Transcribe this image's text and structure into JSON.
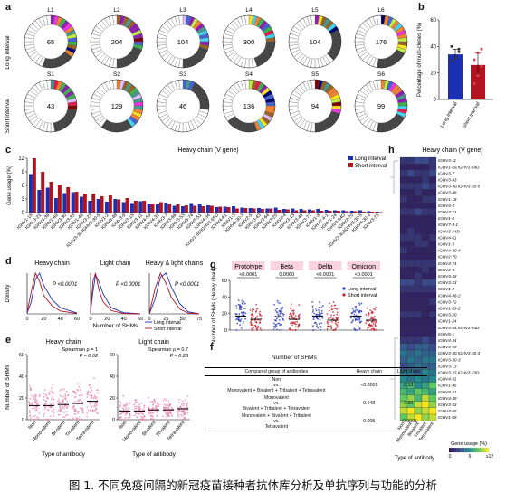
{
  "panel_labels": {
    "a": "a",
    "b": "b",
    "c": "c",
    "d": "d",
    "e": "e",
    "f": "f",
    "g": "g",
    "h": "h"
  },
  "caption": "图 1. 不同免疫间隔的新冠疫苗接种者抗体库分析及单抗序列与功能的分析",
  "colors": {
    "long": "#1b2fb3",
    "short": "#b3121f",
    "pink": "#e87aa8",
    "blue_pt": "#2a3bc5",
    "red_pt": "#c8202b",
    "grid_bg": "#fbd3df"
  },
  "chart_data": [
    {
      "panel": "a",
      "type": "pie",
      "row_labels": [
        "Long interval",
        "Short interval"
      ],
      "donuts": [
        {
          "name": "L1",
          "count": "65",
          "colored_share": 0.35
        },
        {
          "name": "L2",
          "count": "204",
          "colored_share": 0.3
        },
        {
          "name": "L3",
          "count": "104",
          "colored_share": 0.3
        },
        {
          "name": "L4",
          "count": "300",
          "colored_share": 0.25
        },
        {
          "name": "L5",
          "count": "104",
          "colored_share": 0.18
        },
        {
          "name": "L6",
          "count": "176",
          "colored_share": 0.32
        },
        {
          "name": "S1",
          "count": "43",
          "colored_share": 0.28
        },
        {
          "name": "S2",
          "count": "129",
          "colored_share": 0.4
        },
        {
          "name": "S3",
          "count": "46",
          "colored_share": 0.08
        },
        {
          "name": "S4",
          "count": "136",
          "colored_share": 0.45
        },
        {
          "name": "S5",
          "count": "94",
          "colored_share": 0.3
        },
        {
          "name": "S6",
          "count": "99",
          "colored_share": 0.32
        }
      ]
    },
    {
      "panel": "b",
      "type": "bar",
      "ylabel": "Percentage of multi-clones (%)",
      "categories": [
        "Long interval",
        "Short interval"
      ],
      "values": [
        34,
        26
      ],
      "errors": [
        4,
        9
      ],
      "points": [
        [
          29,
          31,
          36,
          40,
          32,
          38
        ],
        [
          12,
          18,
          25,
          30,
          35,
          38
        ]
      ],
      "ylim": [
        0,
        60
      ],
      "yticks": [
        "0",
        "20",
        "40",
        "60"
      ]
    },
    {
      "panel": "c",
      "type": "bar",
      "title": "Heavy chain (V gene)",
      "ylabel": "Gene usage (%)",
      "ylim": [
        0,
        12
      ],
      "yticks": [
        "0",
        "3",
        "6",
        "9",
        "12"
      ],
      "legend": [
        "Long interval",
        "Short interval"
      ],
      "categories": [
        "IGHV1-18",
        "IGHV3-21",
        "IGHV4-39",
        "IGHV1-69",
        "IGHV3-30",
        "IGHV3-33",
        "IGHV1-46",
        "IGHV3-23",
        "IGHV3-30/IGHV3-30-5",
        "IGHV1-2",
        "IGHV3-48",
        "IGHV3-9",
        "IGHV3-15",
        "IGHV3-11",
        "IGHV4-59",
        "IGHV4-31",
        "IGHV3-7",
        "IGHV3-66",
        "IGHV3-53",
        "IGHV3-74",
        "IGHV5-51",
        "IGHV4-34",
        "IGHV1-69/IGHV1-69D",
        "IGHV4-61",
        "IGHV1-3",
        "IGHV3-30-3",
        "IGHV2-5",
        "IGHV3-43",
        "IGHV3-64",
        "IGHV3-20",
        "IGHV4-4",
        "IGHV3-13",
        "IGHV3-49",
        "IGHV3-72",
        "IGHV1-8",
        "IGHV7-4-1",
        "IGHV1-24",
        "IGHV3-64D",
        "IGHV2-70",
        "IGHV3-30/IGHV3-30-5",
        "IGHV4-30-4",
        "IGHV3-73"
      ],
      "series": [
        {
          "name": "Long interval",
          "values": [
            8.5,
            5.0,
            5.5,
            3.2,
            4.3,
            4.5,
            3.5,
            2.6,
            3.0,
            2.4,
            3.0,
            2.3,
            2.1,
            2.5,
            2.0,
            1.8,
            2.2,
            1.5,
            1.4,
            2.1,
            1.9,
            1.6,
            1.2,
            1.3,
            1.4,
            1.1,
            1.0,
            1.0,
            0.9,
            1.1,
            0.8,
            0.9,
            0.8,
            0.7,
            0.8,
            0.6,
            0.5,
            0.5,
            0.4,
            0.5,
            0.3,
            0.2
          ]
        },
        {
          "name": "Short interval",
          "values": [
            12.0,
            9.0,
            6.8,
            6.2,
            5.6,
            4.6,
            4.2,
            4.2,
            3.6,
            3.8,
            2.9,
            3.2,
            2.6,
            2.6,
            2.0,
            2.3,
            1.8,
            1.8,
            1.6,
            1.5,
            1.4,
            1.5,
            1.3,
            1.2,
            0.9,
            1.0,
            0.9,
            0.8,
            0.9,
            0.6,
            0.7,
            0.5,
            0.5,
            0.5,
            0.4,
            0.4,
            0.4,
            0.3,
            0.3,
            0.2,
            0.2,
            0.1
          ]
        }
      ]
    },
    {
      "panel": "d",
      "type": "line",
      "xlabel": "Number of SHMs",
      "ylabel": "Density",
      "xticks": [
        "0",
        "20",
        "40",
        "60"
      ],
      "legend": [
        "Long interval",
        "Short interval"
      ],
      "subplots": [
        {
          "title": "Heavy chain",
          "p": "P <0.0001",
          "long": [
            [
              0,
              0.02
            ],
            [
              5,
              0.3
            ],
            [
              10,
              0.85
            ],
            [
              15,
              1.0
            ],
            [
              20,
              0.7
            ],
            [
              30,
              0.35
            ],
            [
              40,
              0.15
            ],
            [
              60,
              0.02
            ]
          ],
          "short": [
            [
              0,
              0.05
            ],
            [
              5,
              0.55
            ],
            [
              10,
              1.0
            ],
            [
              15,
              0.8
            ],
            [
              20,
              0.45
            ],
            [
              30,
              0.2
            ],
            [
              40,
              0.07
            ],
            [
              60,
              0.01
            ]
          ]
        },
        {
          "title": "Light chain",
          "p": "P <0.0001",
          "long": [
            [
              0,
              0.05
            ],
            [
              3,
              0.55
            ],
            [
              6,
              0.95
            ],
            [
              10,
              0.8
            ],
            [
              15,
              0.5
            ],
            [
              25,
              0.15
            ],
            [
              40,
              0.03
            ],
            [
              60,
              0.0
            ]
          ],
          "short": [
            [
              0,
              0.08
            ],
            [
              3,
              0.8
            ],
            [
              6,
              1.0
            ],
            [
              10,
              0.6
            ],
            [
              15,
              0.3
            ],
            [
              25,
              0.08
            ],
            [
              40,
              0.01
            ],
            [
              60,
              0.0
            ]
          ]
        },
        {
          "title": "Heavy & light chains",
          "p": "P <0.0001",
          "long": [
            [
              0,
              0.0
            ],
            [
              10,
              0.35
            ],
            [
              20,
              0.9
            ],
            [
              30,
              1.0
            ],
            [
              40,
              0.65
            ],
            [
              55,
              0.25
            ],
            [
              70,
              0.05
            ],
            [
              90,
              0.0
            ]
          ],
          "short": [
            [
              0,
              0.02
            ],
            [
              10,
              0.6
            ],
            [
              20,
              1.0
            ],
            [
              30,
              0.75
            ],
            [
              40,
              0.4
            ],
            [
              55,
              0.12
            ],
            [
              70,
              0.02
            ],
            [
              90,
              0.0
            ]
          ]
        }
      ]
    },
    {
      "panel": "e",
      "type": "scatter",
      "ylabel": "Number of SHMs",
      "xlabel": "Type of antibody",
      "ylim": [
        0,
        60
      ],
      "yticks": [
        "0",
        "20",
        "40",
        "60"
      ],
      "categories": [
        "Non",
        "Monovalent",
        "Bivalent",
        "Trivalent",
        "Tetravalent"
      ],
      "subplots": [
        {
          "title": "Heavy chain",
          "stat": "Spearman ρ = 1",
          "p": "P = 0.02",
          "medians": [
            13,
            13,
            14,
            15,
            17
          ]
        },
        {
          "title": "Light chain",
          "stat": "Spearman ρ = 0.7",
          "p": "P = 0.23",
          "medians": [
            8,
            8,
            9,
            9,
            10
          ]
        }
      ]
    },
    {
      "panel": "g",
      "type": "scatter",
      "ylabel": "Number of SHMs (Heavy chain)",
      "ylim": [
        0,
        60
      ],
      "yticks": [
        "0",
        "20",
        "40",
        "60"
      ],
      "legend": [
        "Long interval",
        "Short interval"
      ],
      "groups": [
        {
          "name": "Prototype",
          "p": "<0.0001",
          "long_median": 17,
          "short_median": 13
        },
        {
          "name": "Beta",
          "p": "0.0060",
          "long_median": 16,
          "short_median": 13
        },
        {
          "name": "Delta",
          "p": "<0.0001",
          "long_median": 17,
          "short_median": 12
        },
        {
          "name": "Omicron",
          "p": "<0.0001",
          "long_median": 17,
          "short_median": 12
        }
      ]
    },
    {
      "panel": "f",
      "type": "table",
      "title": "Number of SHMs",
      "columns": [
        "Compared group of antibodies",
        "Heavy chain",
        "Light chain"
      ],
      "rows": [
        {
          "group": [
            "Non",
            "vs.",
            "Monovalent + Bivalent + Tribalent + Tetravalent"
          ],
          "heavy": "<0.0001",
          "light": "0.13"
        },
        {
          "group": [
            "Monovalent",
            "vs.",
            "Bivalent + Tribalent + Tetravalent"
          ],
          "heavy": "0.048",
          "light": "0.60"
        },
        {
          "group": [
            "Monovalent + Bivalent + Tribalent",
            "vs.",
            "Tetravalent"
          ],
          "heavy": "0.005",
          "light": "<0.0001"
        }
      ]
    },
    {
      "panel": "h",
      "type": "heatmap",
      "title": "Heavy chain (V gene)",
      "xlabel": "Type of antibody",
      "columns": [
        "Non",
        "Monovalent",
        "Bivalent",
        "Trivalent",
        "Tetravalent"
      ],
      "legend_title": "Gene usage (%)",
      "legend_ticks": [
        "0",
        "6",
        "≥12"
      ],
      "rows": [
        "IGHV3-11",
        "IGHV1-69,IGHV1-69D",
        "IGHV3-7",
        "IGHV3-33",
        "IGHV3-30,IGHV3-30-5",
        "IGHV3-48",
        "IGHV1-18",
        "IGHV4-4",
        "IGHV3-21",
        "IGHV1-8",
        "IGHV7-4-1",
        "IGHV3-64D",
        "IGHV4-61",
        "IGHV1-3",
        "IGHV4-30-4",
        "IGHV2-70",
        "IGHV3-74",
        "IGHV2-5",
        "IGHV3-43",
        "IGHV3-23",
        "IGHV1-2",
        "IGHV4-38-2",
        "IGHV3-72",
        "IGHV1-69-2",
        "IGHV3-20",
        "IGHV1-24",
        "IGHV3-64,IGHV3-64D",
        "IGHV6-1",
        "IGHV4-34",
        "IGHV4-59",
        "IGHV3-30,IGHV3-30-3",
        "IGHV3-30-3",
        "IGHV3-13",
        "IGHV3-23,IGHV3-23D",
        "IGHV4-31",
        "IGHV1-46",
        "IGHV5-51",
        "IGHV4-39",
        "IGHV3-53",
        "IGHV3-66",
        "IGHV1-69"
      ],
      "values": [
        [
          2,
          2,
          3,
          3,
          2
        ],
        [
          1,
          1,
          1,
          1,
          2
        ],
        [
          2,
          3,
          2,
          2,
          3
        ],
        [
          1,
          1,
          1,
          2,
          1
        ],
        [
          2,
          2,
          2,
          3,
          2
        ],
        [
          1,
          1,
          2,
          1,
          1
        ],
        [
          2,
          1,
          1,
          2,
          2
        ],
        [
          1,
          1,
          1,
          1,
          1
        ],
        [
          2,
          2,
          3,
          2,
          2
        ],
        [
          1,
          1,
          1,
          1,
          1
        ],
        [
          1,
          1,
          1,
          1,
          1
        ],
        [
          1,
          2,
          1,
          1,
          1
        ],
        [
          2,
          2,
          2,
          1,
          2
        ],
        [
          1,
          1,
          2,
          2,
          1
        ],
        [
          2,
          1,
          1,
          1,
          1
        ],
        [
          1,
          1,
          1,
          1,
          1
        ],
        [
          2,
          2,
          2,
          2,
          2
        ],
        [
          1,
          1,
          1,
          2,
          1
        ],
        [
          1,
          1,
          2,
          1,
          1
        ],
        [
          3,
          3,
          2,
          3,
          3
        ],
        [
          2,
          2,
          2,
          2,
          2
        ],
        [
          1,
          1,
          1,
          1,
          1
        ],
        [
          1,
          1,
          1,
          1,
          2
        ],
        [
          1,
          1,
          1,
          1,
          1
        ],
        [
          2,
          2,
          2,
          1,
          2
        ],
        [
          1,
          1,
          1,
          1,
          1
        ],
        [
          1,
          1,
          1,
          1,
          1
        ],
        [
          1,
          1,
          1,
          1,
          1
        ],
        [
          2,
          2,
          2,
          3,
          2
        ],
        [
          4,
          3,
          4,
          4,
          3
        ],
        [
          5,
          4,
          5,
          4,
          4
        ],
        [
          4,
          5,
          4,
          5,
          5
        ],
        [
          3,
          4,
          5,
          4,
          4
        ],
        [
          5,
          5,
          4,
          6,
          5
        ],
        [
          6,
          5,
          6,
          5,
          6
        ],
        [
          7,
          8,
          6,
          7,
          9
        ],
        [
          8,
          7,
          9,
          8,
          7
        ],
        [
          9,
          10,
          8,
          11,
          9
        ],
        [
          10,
          9,
          11,
          12,
          10
        ],
        [
          11,
          12,
          10,
          11,
          12
        ],
        [
          9,
          11,
          12,
          10,
          11
        ]
      ]
    }
  ]
}
